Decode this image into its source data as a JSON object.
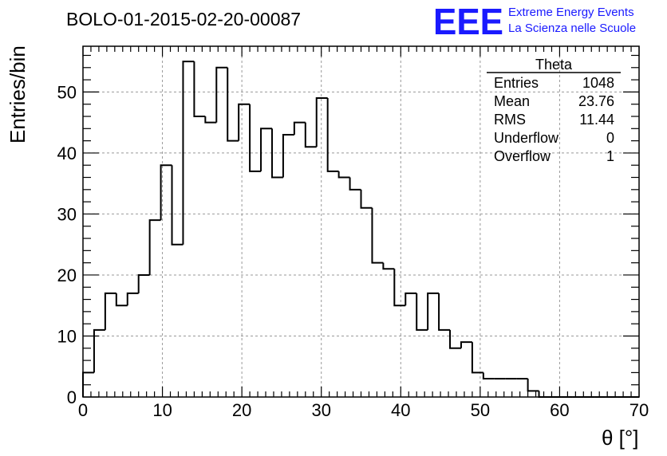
{
  "chart_data": {
    "type": "bar",
    "title": "BOLO-01-2015-02-20-00087",
    "xlabel": "θ [°]",
    "ylabel": "Entries/bin",
    "xlim": [
      0,
      70
    ],
    "ylim": [
      0,
      57.5
    ],
    "bin_width": 1.4,
    "bin_edges_start": 0,
    "values": [
      4,
      11,
      17,
      15,
      17,
      20,
      29,
      38,
      25,
      55,
      46,
      45,
      54,
      42,
      48,
      37,
      44,
      36,
      43,
      45,
      41,
      49,
      37,
      36,
      34,
      31,
      22,
      21,
      15,
      17,
      11,
      17,
      11,
      8,
      9,
      4,
      3,
      3,
      3,
      3,
      1,
      0,
      0,
      0,
      0,
      0,
      0,
      0,
      0,
      0
    ],
    "x_ticks": [
      "0",
      "10",
      "20",
      "30",
      "40",
      "50",
      "60",
      "70"
    ],
    "y_ticks": [
      "0",
      "10",
      "20",
      "30",
      "40",
      "50"
    ],
    "grid": true,
    "legend": "none"
  },
  "stats_box": {
    "title": "Theta",
    "rows": [
      {
        "label": "Entries",
        "value": "1048"
      },
      {
        "label": "Mean",
        "value": "23.76"
      },
      {
        "label": "RMS",
        "value": "11.44"
      },
      {
        "label": "Underflow",
        "value": "0"
      },
      {
        "label": "Overflow",
        "value": "1"
      }
    ]
  },
  "logo": {
    "mark": "EEE",
    "line1": "Extreme Energy Events",
    "line2": "La Scienza nelle Scuole",
    "color": "#1a1aff"
  }
}
